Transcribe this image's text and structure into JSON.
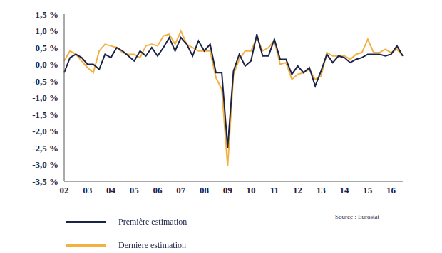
{
  "chart_data": {
    "type": "line",
    "categories": [
      "02",
      null,
      null,
      null,
      "03",
      null,
      null,
      null,
      "04",
      null,
      null,
      null,
      "05",
      null,
      null,
      null,
      "06",
      null,
      null,
      null,
      "07",
      null,
      null,
      null,
      "08",
      null,
      null,
      null,
      "09",
      null,
      null,
      null,
      "10",
      null,
      null,
      null,
      "11",
      null,
      null,
      null,
      "12",
      null,
      null,
      null,
      "13",
      null,
      null,
      null,
      "14",
      null,
      null,
      null,
      "15",
      null,
      null,
      null,
      "16",
      null,
      null
    ],
    "series": [
      {
        "name": "Dernière estimation",
        "color": "#f4b042",
        "values": [
          0.1,
          0.4,
          0.3,
          0.1,
          -0.1,
          -0.25,
          0.4,
          0.6,
          0.55,
          0.5,
          0.35,
          0.3,
          0.3,
          0.2,
          0.55,
          0.6,
          0.55,
          0.85,
          0.9,
          0.6,
          1.0,
          0.6,
          0.5,
          0.4,
          0.4,
          0.4,
          -0.4,
          -0.75,
          -3.05,
          -0.3,
          0.15,
          0.4,
          0.4,
          0.8,
          0.4,
          0.5,
          0.7,
          0.0,
          0.05,
          -0.45,
          -0.3,
          -0.25,
          -0.15,
          -0.45,
          -0.35,
          0.35,
          0.25,
          0.25,
          0.25,
          0.15,
          0.3,
          0.35,
          0.75,
          0.35,
          0.35,
          0.45,
          0.35,
          0.45,
          0.25
        ]
      },
      {
        "name": "Première estimation",
        "color": "#1b2347",
        "values": [
          -0.25,
          0.2,
          0.3,
          0.2,
          0.0,
          0.0,
          -0.15,
          0.3,
          0.2,
          0.5,
          0.4,
          0.25,
          0.1,
          0.4,
          0.25,
          0.5,
          0.25,
          0.5,
          0.8,
          0.4,
          0.8,
          0.6,
          0.25,
          0.7,
          0.4,
          0.6,
          -0.25,
          -0.25,
          -2.5,
          -0.2,
          0.3,
          -0.05,
          0.1,
          0.9,
          0.25,
          0.25,
          0.75,
          0.15,
          0.15,
          -0.3,
          -0.05,
          -0.25,
          -0.1,
          -0.65,
          -0.2,
          0.3,
          0.05,
          0.25,
          0.2,
          0.05,
          0.15,
          0.2,
          0.3,
          0.3,
          0.3,
          0.25,
          0.3,
          0.55,
          0.25
        ]
      }
    ],
    "ylim": [
      -3.5,
      1.5
    ],
    "yticks": [
      {
        "value": -3.5,
        "label": "-3,5 %"
      },
      {
        "value": -3.0,
        "label": "-3,0 %"
      },
      {
        "value": -2.5,
        "label": "-2,5 %"
      },
      {
        "value": -2.0,
        "label": "-2,0 %"
      },
      {
        "value": -1.5,
        "label": "-1,5 %"
      },
      {
        "value": -1.0,
        "label": "-1,0 %"
      },
      {
        "value": -0.5,
        "label": "-0,5 %"
      },
      {
        "value": 0,
        "label": "0,0 %"
      },
      {
        "value": 0.5,
        "label": "0,5 %"
      },
      {
        "value": 1.0,
        "label": "1,0 %"
      },
      {
        "value": 1.5,
        "label": "1,5 %"
      }
    ],
    "grid": false,
    "legend": "bottom",
    "source": "Source : Eurostat"
  }
}
